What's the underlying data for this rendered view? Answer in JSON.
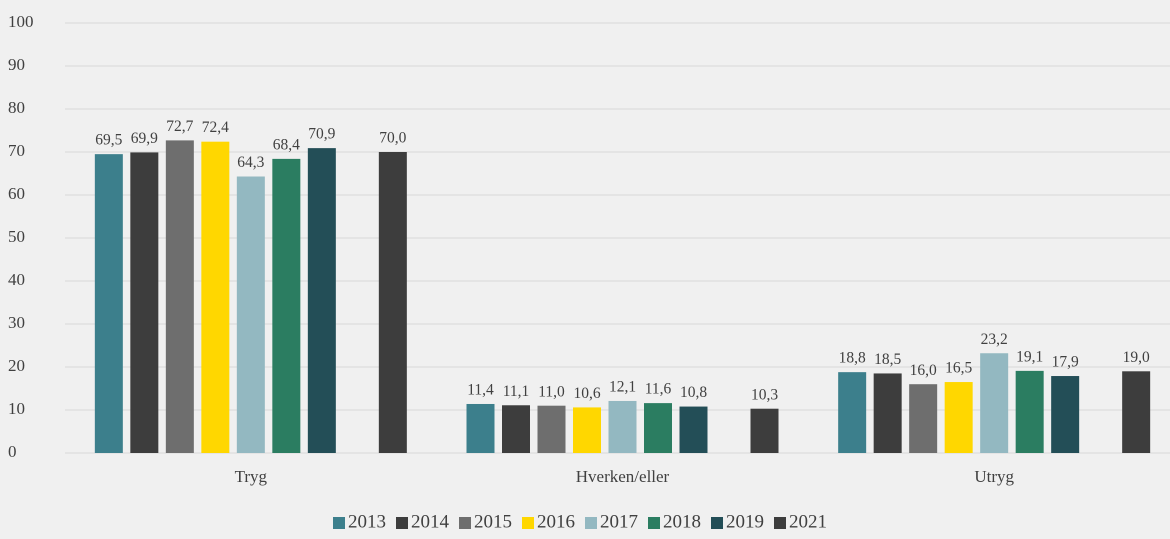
{
  "chart_data": {
    "type": "bar",
    "categories": [
      "Tryg",
      "Hverken/eller",
      "Utryg"
    ],
    "series": [
      {
        "name": "2013",
        "color": "#3c7f8c",
        "values": [
          69.5,
          11.4,
          18.8
        ],
        "value_labels": [
          "69,5",
          "11,4",
          "18,8"
        ]
      },
      {
        "name": "2014",
        "color": "#3d3d3d",
        "values": [
          69.9,
          11.1,
          18.5
        ],
        "value_labels": [
          "69,9",
          "11,1",
          "18,5"
        ]
      },
      {
        "name": "2015",
        "color": "#6e6e6e",
        "values": [
          72.7,
          11.0,
          16.0
        ],
        "value_labels": [
          "72,7",
          "11,0",
          "16,0"
        ]
      },
      {
        "name": "2016",
        "color": "#ffd700",
        "values": [
          72.4,
          10.6,
          16.5
        ],
        "value_labels": [
          "72,4",
          "10,6",
          "16,5"
        ]
      },
      {
        "name": "2017",
        "color": "#93b8c1",
        "values": [
          64.3,
          12.1,
          23.2
        ],
        "value_labels": [
          "64,3",
          "12,1",
          "23,2"
        ]
      },
      {
        "name": "2018",
        "color": "#2b7d61",
        "values": [
          68.4,
          11.6,
          19.1
        ],
        "value_labels": [
          "68,4",
          "11,6",
          "19,1"
        ]
      },
      {
        "name": "2019",
        "color": "#234e57",
        "values": [
          70.9,
          10.8,
          17.9
        ],
        "value_labels": [
          "70,9",
          "10,8",
          "17,9"
        ]
      },
      {
        "name": "2021",
        "color": "#3d3d3d",
        "values": [
          70.0,
          10.3,
          19.0
        ],
        "value_labels": [
          "70,0",
          "10,3",
          "19,0"
        ]
      }
    ],
    "ylim": [
      0,
      100
    ],
    "yticks": [
      0,
      10,
      20,
      30,
      40,
      50,
      60,
      70,
      80,
      90,
      100
    ],
    "grid": true,
    "legend": "bottom"
  }
}
